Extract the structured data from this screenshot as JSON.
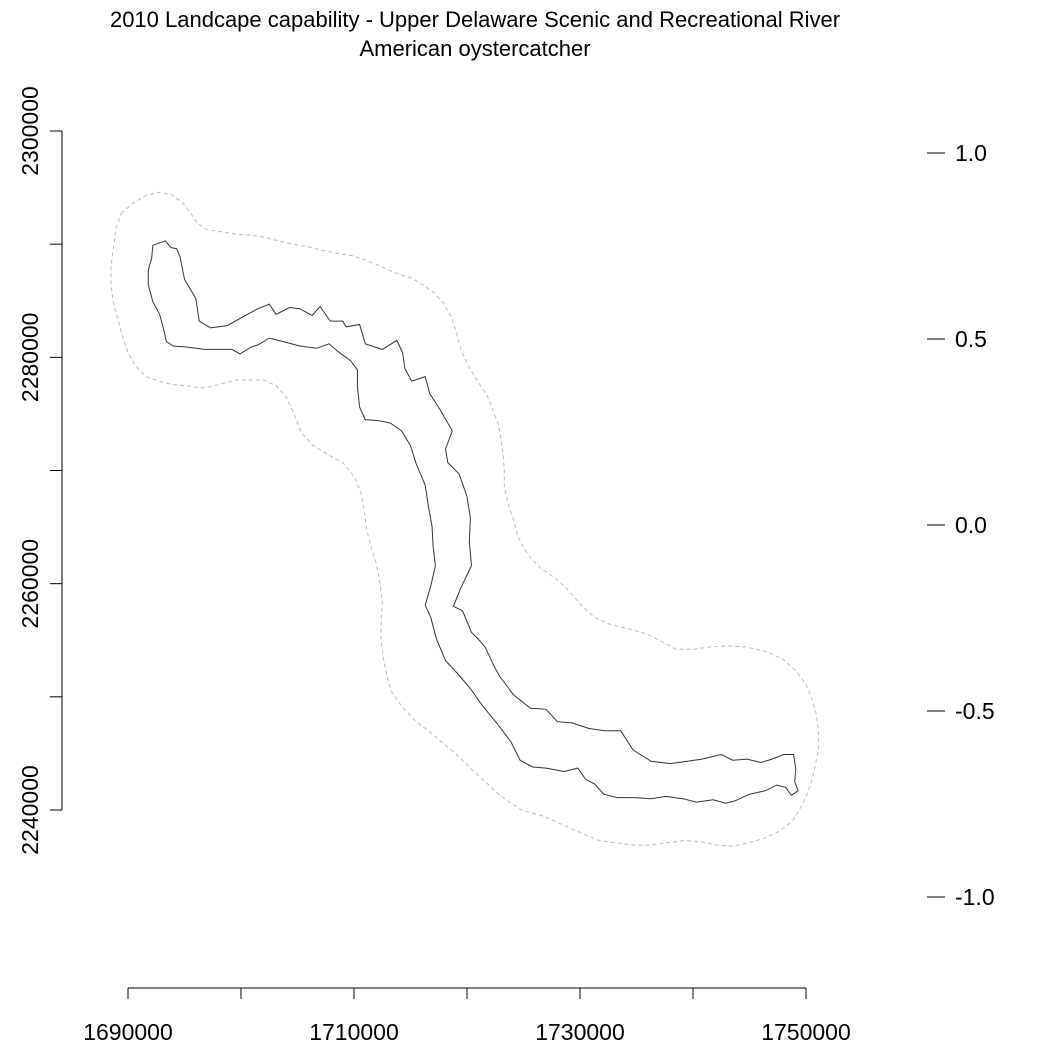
{
  "title": {
    "line1": "2010 Landcape capability - Upper Delaware Scenic and Recreational River",
    "line2": "American oystercatcher"
  },
  "chart_data": {
    "type": "map",
    "xlim": [
      1690000,
      1750000
    ],
    "ylim": [
      2240000,
      2300000
    ],
    "x_ticks": [
      "1690000",
      "1710000",
      "1730000",
      "1750000"
    ],
    "y_ticks": [
      "2240000",
      "2260000",
      "2280000",
      "2300000"
    ],
    "legend_ticks": [
      "1.0",
      "0.5",
      "0.0",
      "-0.5",
      "-1.0"
    ],
    "legend_range": [
      -1.0,
      1.0
    ],
    "layers": [
      {
        "name": "park-boundary",
        "style": "solid",
        "color": "#333333"
      },
      {
        "name": "buffer",
        "style": "dashed",
        "color": "#bbbbbb"
      }
    ],
    "boundary": [
      [
        1692200,
        2289900
      ],
      [
        1693300,
        2290300
      ],
      [
        1693800,
        2289700
      ],
      [
        1694300,
        2289600
      ],
      [
        1694600,
        2288900
      ],
      [
        1695000,
        2286900
      ],
      [
        1696000,
        2285200
      ],
      [
        1696300,
        2283200
      ],
      [
        1697300,
        2282600
      ],
      [
        1698800,
        2282800
      ],
      [
        1700200,
        2283600
      ],
      [
        1701500,
        2284300
      ],
      [
        1702500,
        2284700
      ],
      [
        1703100,
        2283800
      ],
      [
        1704300,
        2284400
      ],
      [
        1705200,
        2284300
      ],
      [
        1706300,
        2283700
      ],
      [
        1707000,
        2284500
      ],
      [
        1707900,
        2283200
      ],
      [
        1709000,
        2283200
      ],
      [
        1709300,
        2282700
      ],
      [
        1710500,
        2282900
      ],
      [
        1711000,
        2281200
      ],
      [
        1712500,
        2280700
      ],
      [
        1713800,
        2281500
      ],
      [
        1714300,
        2280400
      ],
      [
        1714500,
        2279000
      ],
      [
        1715100,
        2277900
      ],
      [
        1716300,
        2278300
      ],
      [
        1716700,
        2276800
      ],
      [
        1717600,
        2275400
      ],
      [
        1718700,
        2273500
      ],
      [
        1718100,
        2271900
      ],
      [
        1718300,
        2270700
      ],
      [
        1719300,
        2269700
      ],
      [
        1720000,
        2267700
      ],
      [
        1720300,
        2265800
      ],
      [
        1720200,
        2263700
      ],
      [
        1720400,
        2261600
      ],
      [
        1719400,
        2259500
      ],
      [
        1718800,
        2258000
      ],
      [
        1719600,
        2257600
      ],
      [
        1720400,
        2255700
      ],
      [
        1721000,
        2255100
      ],
      [
        1721600,
        2254400
      ],
      [
        1722400,
        2252700
      ],
      [
        1722900,
        2251800
      ],
      [
        1724100,
        2250200
      ],
      [
        1725600,
        2249000
      ],
      [
        1727000,
        2248900
      ],
      [
        1728000,
        2247800
      ],
      [
        1729300,
        2247700
      ],
      [
        1730800,
        2247200
      ],
      [
        1732200,
        2247000
      ],
      [
        1733600,
        2247000
      ],
      [
        1734700,
        2245300
      ],
      [
        1736300,
        2244300
      ],
      [
        1738000,
        2244100
      ],
      [
        1739500,
        2244300
      ],
      [
        1740800,
        2244500
      ],
      [
        1742500,
        2244900
      ],
      [
        1743500,
        2244400
      ],
      [
        1744800,
        2244500
      ],
      [
        1746000,
        2244200
      ],
      [
        1747000,
        2244500
      ],
      [
        1748000,
        2244900
      ],
      [
        1748900,
        2244900
      ],
      [
        1749100,
        2243600
      ],
      [
        1749000,
        2242500
      ],
      [
        1749300,
        2241700
      ],
      [
        1748700,
        2241300
      ],
      [
        1748200,
        2242000
      ],
      [
        1747400,
        2242200
      ],
      [
        1746400,
        2241700
      ],
      [
        1745000,
        2241400
      ],
      [
        1743700,
        2240800
      ],
      [
        1742900,
        2240600
      ],
      [
        1741800,
        2240900
      ],
      [
        1740300,
        2240700
      ],
      [
        1739100,
        2241000
      ],
      [
        1737600,
        2241200
      ],
      [
        1736300,
        2241000
      ],
      [
        1734800,
        2241100
      ],
      [
        1733300,
        2241100
      ],
      [
        1732100,
        2241400
      ],
      [
        1731300,
        2242300
      ],
      [
        1730500,
        2242700
      ],
      [
        1729800,
        2243700
      ],
      [
        1728600,
        2243400
      ],
      [
        1727000,
        2243700
      ],
      [
        1725800,
        2243800
      ],
      [
        1724700,
        2244400
      ],
      [
        1723900,
        2246000
      ],
      [
        1722700,
        2247600
      ],
      [
        1721300,
        2249300
      ],
      [
        1720400,
        2250600
      ],
      [
        1719400,
        2251800
      ],
      [
        1718100,
        2253200
      ],
      [
        1717300,
        2255100
      ],
      [
        1716800,
        2257000
      ],
      [
        1716300,
        2258100
      ],
      [
        1716800,
        2259800
      ],
      [
        1717200,
        2261600
      ],
      [
        1717000,
        2263300
      ],
      [
        1716900,
        2265100
      ],
      [
        1716600,
        2266700
      ],
      [
        1716300,
        2268700
      ],
      [
        1715500,
        2270600
      ],
      [
        1715000,
        2272200
      ],
      [
        1714200,
        2273500
      ],
      [
        1713200,
        2274200
      ],
      [
        1712200,
        2274400
      ],
      [
        1711000,
        2274500
      ],
      [
        1710500,
        2275600
      ],
      [
        1710300,
        2277400
      ],
      [
        1710300,
        2278900
      ],
      [
        1709700,
        2279700
      ],
      [
        1708600,
        2280500
      ],
      [
        1707800,
        2281200
      ],
      [
        1706700,
        2280800
      ],
      [
        1705200,
        2281000
      ],
      [
        1703700,
        2281400
      ],
      [
        1702500,
        2281700
      ],
      [
        1701500,
        2281100
      ],
      [
        1700900,
        2280900
      ],
      [
        1699900,
        2280300
      ],
      [
        1699200,
        2280700
      ],
      [
        1697800,
        2280700
      ],
      [
        1696800,
        2280700
      ],
      [
        1695300,
        2280900
      ],
      [
        1694000,
        2281000
      ],
      [
        1693400,
        2281400
      ],
      [
        1693100,
        2282700
      ],
      [
        1692800,
        2283800
      ],
      [
        1692200,
        2284900
      ],
      [
        1691800,
        2286400
      ],
      [
        1691800,
        2287700
      ],
      [
        1692100,
        2288800
      ]
    ],
    "buffer": [
      [
        1689400,
        2292700
      ],
      [
        1690400,
        2293600
      ],
      [
        1691600,
        2294300
      ],
      [
        1692800,
        2294600
      ],
      [
        1693800,
        2294400
      ],
      [
        1694800,
        2293700
      ],
      [
        1695500,
        2292800
      ],
      [
        1696100,
        2291900
      ],
      [
        1697000,
        2291300
      ],
      [
        1698200,
        2291100
      ],
      [
        1699400,
        2290900
      ],
      [
        1700800,
        2290800
      ],
      [
        1702100,
        2290600
      ],
      [
        1703300,
        2290300
      ],
      [
        1704500,
        2290000
      ],
      [
        1705800,
        2289800
      ],
      [
        1707000,
        2289500
      ],
      [
        1708400,
        2289200
      ],
      [
        1709800,
        2289000
      ],
      [
        1711000,
        2288600
      ],
      [
        1712000,
        2288200
      ],
      [
        1713100,
        2287700
      ],
      [
        1714100,
        2287300
      ],
      [
        1715100,
        2287000
      ],
      [
        1716100,
        2286400
      ],
      [
        1717100,
        2285700
      ],
      [
        1717900,
        2284800
      ],
      [
        1718600,
        2283600
      ],
      [
        1719100,
        2282100
      ],
      [
        1719500,
        2280600
      ],
      [
        1720200,
        2279100
      ],
      [
        1721000,
        2277800
      ],
      [
        1721800,
        2276600
      ],
      [
        1722300,
        2275300
      ],
      [
        1722800,
        2274000
      ],
      [
        1723000,
        2272800
      ],
      [
        1723200,
        2271400
      ],
      [
        1723300,
        2270000
      ],
      [
        1723300,
        2268500
      ],
      [
        1723700,
        2266900
      ],
      [
        1724200,
        2265400
      ],
      [
        1724500,
        2264200
      ],
      [
        1725000,
        2263200
      ],
      [
        1725700,
        2262200
      ],
      [
        1726600,
        2261300
      ],
      [
        1727800,
        2260500
      ],
      [
        1728800,
        2259600
      ],
      [
        1729500,
        2258800
      ],
      [
        1730300,
        2257900
      ],
      [
        1731300,
        2257000
      ],
      [
        1732700,
        2256400
      ],
      [
        1734300,
        2256000
      ],
      [
        1735800,
        2255600
      ],
      [
        1737200,
        2254900
      ],
      [
        1738500,
        2254200
      ],
      [
        1740000,
        2254200
      ],
      [
        1741500,
        2254400
      ],
      [
        1743000,
        2254500
      ],
      [
        1744700,
        2254400
      ],
      [
        1746500,
        2254000
      ],
      [
        1748000,
        2253300
      ],
      [
        1749100,
        2252300
      ],
      [
        1750000,
        2251100
      ],
      [
        1750500,
        2249900
      ],
      [
        1750900,
        2248500
      ],
      [
        1751100,
        2247000
      ],
      [
        1751100,
        2245400
      ],
      [
        1750800,
        2243800
      ],
      [
        1750400,
        2242200
      ],
      [
        1749700,
        2240500
      ],
      [
        1748800,
        2239000
      ],
      [
        1747600,
        2238100
      ],
      [
        1746300,
        2237500
      ],
      [
        1744900,
        2237100
      ],
      [
        1743500,
        2236800
      ],
      [
        1742100,
        2236900
      ],
      [
        1740700,
        2237200
      ],
      [
        1739200,
        2237300
      ],
      [
        1737700,
        2237100
      ],
      [
        1736200,
        2236900
      ],
      [
        1734700,
        2236900
      ],
      [
        1733200,
        2237100
      ],
      [
        1731700,
        2237300
      ],
      [
        1730300,
        2237900
      ],
      [
        1728900,
        2238500
      ],
      [
        1727600,
        2239100
      ],
      [
        1726300,
        2239600
      ],
      [
        1725000,
        2239900
      ],
      [
        1723900,
        2240600
      ],
      [
        1722800,
        2241400
      ],
      [
        1721600,
        2242500
      ],
      [
        1720400,
        2243600
      ],
      [
        1719200,
        2244800
      ],
      [
        1718000,
        2245800
      ],
      [
        1716700,
        2246900
      ],
      [
        1715400,
        2247900
      ],
      [
        1714200,
        2249200
      ],
      [
        1713300,
        2250500
      ],
      [
        1712900,
        2251900
      ],
      [
        1712600,
        2253400
      ],
      [
        1712400,
        2255000
      ],
      [
        1712400,
        2256700
      ],
      [
        1712500,
        2258300
      ],
      [
        1712300,
        2260000
      ],
      [
        1712000,
        2261700
      ],
      [
        1711500,
        2263300
      ],
      [
        1711100,
        2264900
      ],
      [
        1710900,
        2266500
      ],
      [
        1710600,
        2268100
      ],
      [
        1710000,
        2269500
      ],
      [
        1709000,
        2270700
      ],
      [
        1707700,
        2271400
      ],
      [
        1706400,
        2272200
      ],
      [
        1705300,
        2273400
      ],
      [
        1704700,
        2275000
      ],
      [
        1704000,
        2276500
      ],
      [
        1703100,
        2277500
      ],
      [
        1702000,
        2278000
      ],
      [
        1700700,
        2278000
      ],
      [
        1699500,
        2278000
      ],
      [
        1698400,
        2277700
      ],
      [
        1697300,
        2277400
      ],
      [
        1696300,
        2277300
      ],
      [
        1695100,
        2277500
      ],
      [
        1693900,
        2277600
      ],
      [
        1692700,
        2277900
      ],
      [
        1691600,
        2278300
      ],
      [
        1690700,
        2279200
      ],
      [
        1690000,
        2280400
      ],
      [
        1689500,
        2281900
      ],
      [
        1689100,
        2283400
      ],
      [
        1688700,
        2284900
      ],
      [
        1688500,
        2286400
      ],
      [
        1688500,
        2288000
      ],
      [
        1688700,
        2289600
      ],
      [
        1688900,
        2291300
      ]
    ]
  }
}
